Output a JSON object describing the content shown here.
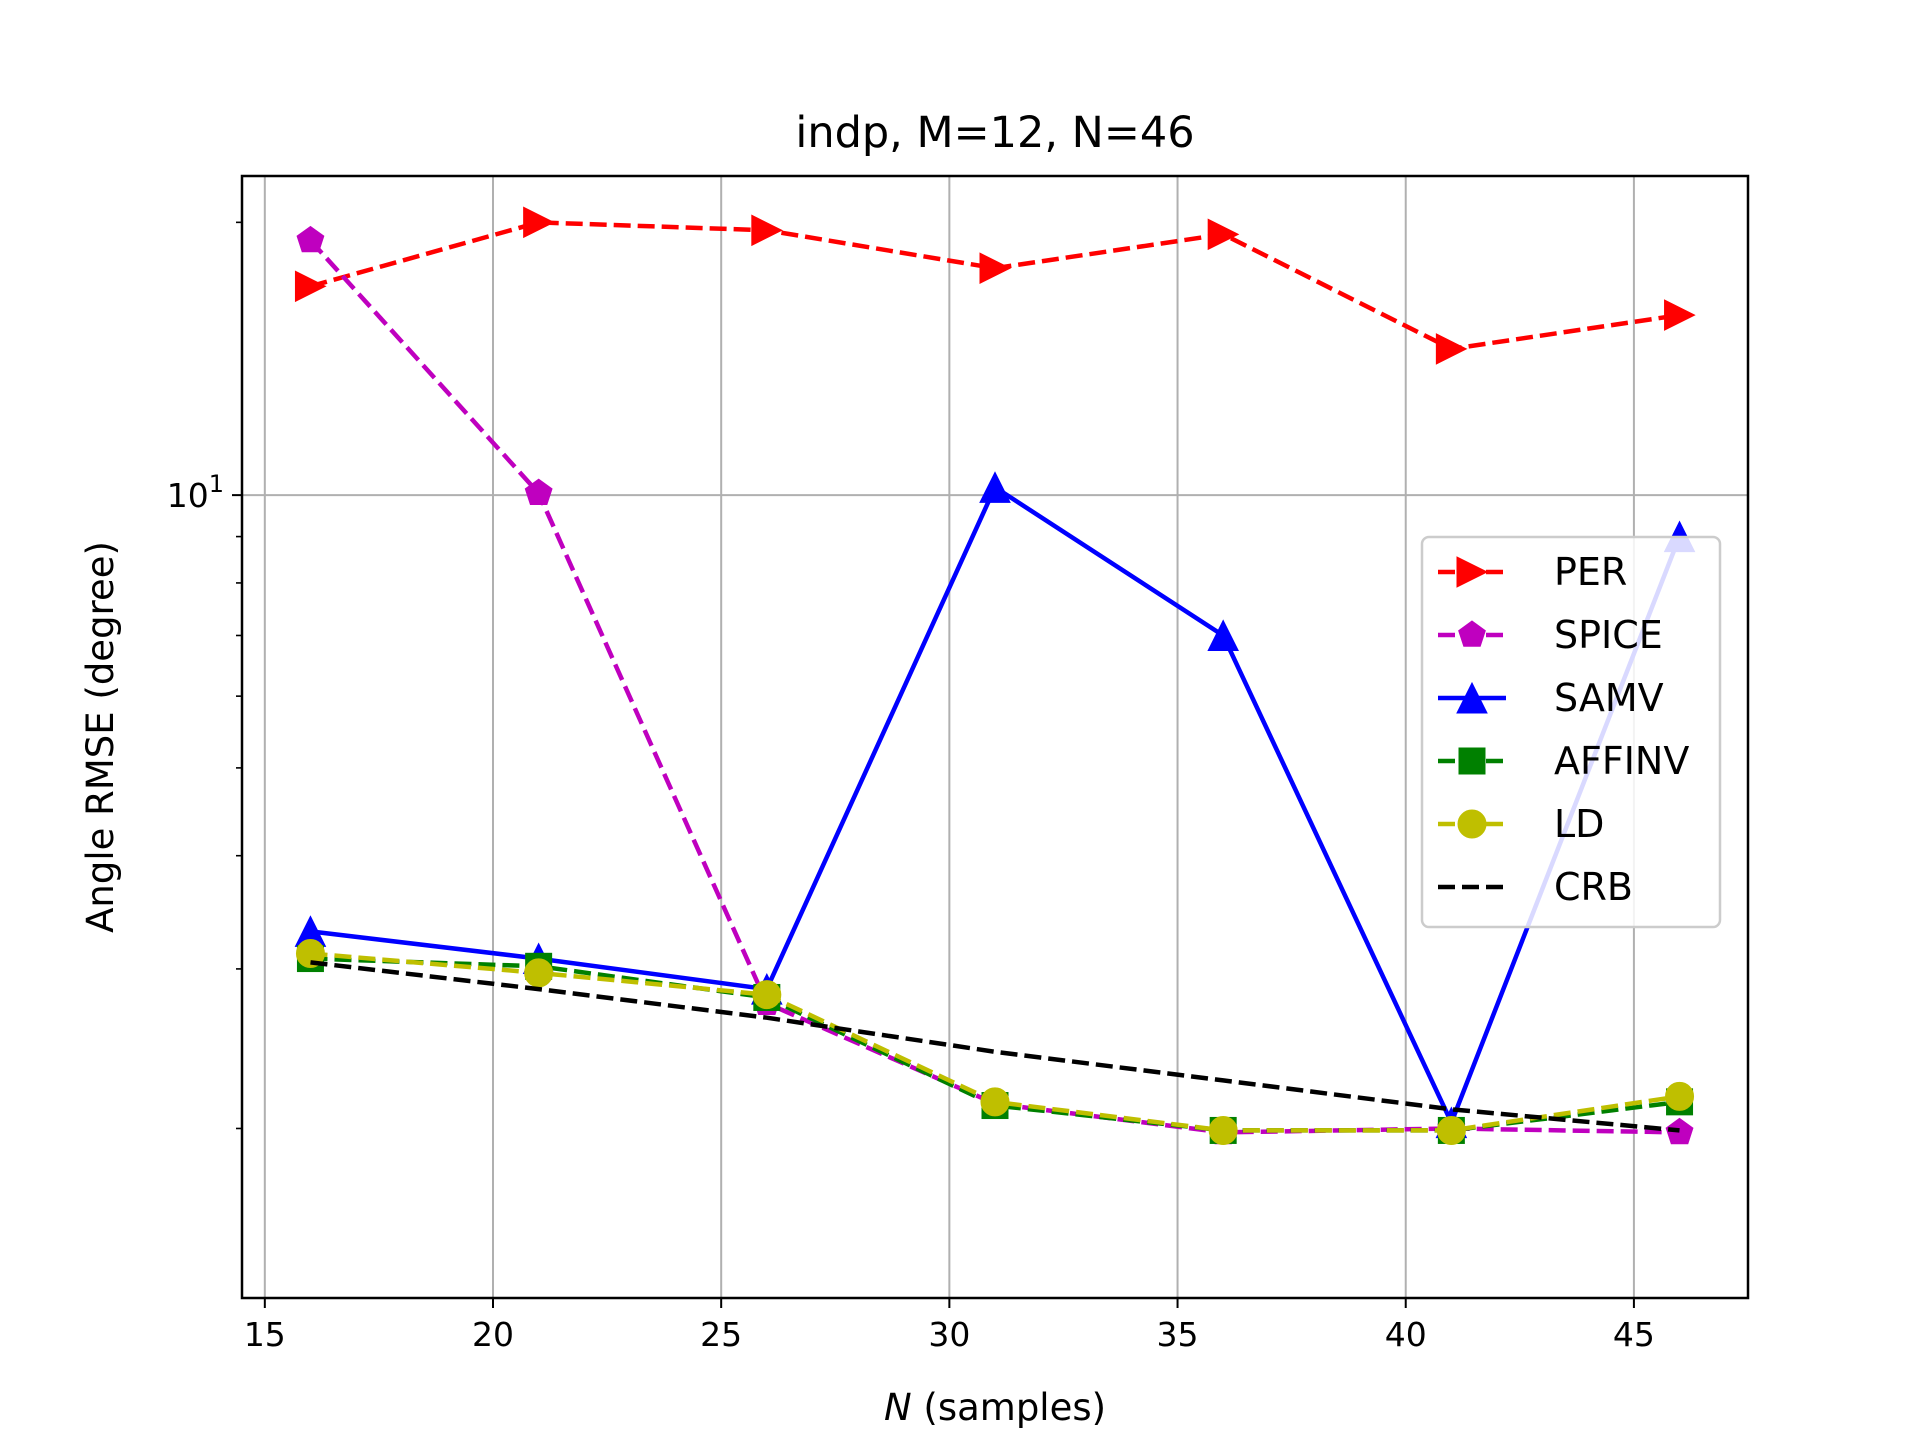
{
  "chart_data": {
    "type": "line",
    "title": "indp, M=12, N=46",
    "xlabel_var": "N",
    "xlabel_rest": " (samples)",
    "ylabel": "Angle RMSE (degree)",
    "x_scale": "linear",
    "y_scale": "log",
    "xlim": [
      14.5,
      47.5
    ],
    "ylim": [
      1.3,
      22.5
    ],
    "x_ticks": [
      15,
      20,
      25,
      30,
      35,
      40,
      45
    ],
    "y_ticks": [
      {
        "value": 10,
        "base": "10",
        "exp": "1"
      }
    ],
    "grid": true,
    "legend_position": "center-right",
    "x": [
      16,
      21,
      26,
      31,
      36,
      41,
      46
    ],
    "series": [
      {
        "name": "PER",
        "color": "#ff0000",
        "linestyle": "dashed",
        "marker": "triangle-right",
        "values": [
          17.0,
          20.0,
          19.6,
          17.8,
          19.4,
          14.5,
          15.8
        ]
      },
      {
        "name": "SPICE",
        "color": "#bf00bf",
        "linestyle": "dashed",
        "marker": "pentagon",
        "values": [
          19.1,
          10.05,
          2.75,
          2.13,
          1.98,
          2.0,
          1.98
        ]
      },
      {
        "name": "SAMV",
        "color": "#0000ff",
        "linestyle": "solid",
        "marker": "triangle-up",
        "values": [
          3.3,
          3.08,
          2.85,
          10.2,
          7.0,
          2.03,
          9.0
        ]
      },
      {
        "name": "AFFINV",
        "color": "#008000",
        "linestyle": "dashed",
        "marker": "square",
        "values": [
          3.08,
          3.02,
          2.79,
          2.12,
          1.99,
          1.99,
          2.14
        ]
      },
      {
        "name": "LD",
        "color": "#bfbf00",
        "linestyle": "dashed",
        "marker": "circle",
        "values": [
          3.12,
          2.97,
          2.81,
          2.14,
          1.99,
          1.99,
          2.17
        ]
      },
      {
        "name": "CRB",
        "color": "#000000",
        "linestyle": "dashed",
        "marker": "none",
        "values": [
          3.05,
          2.85,
          2.65,
          2.43,
          2.26,
          2.1,
          1.99
        ]
      }
    ]
  }
}
